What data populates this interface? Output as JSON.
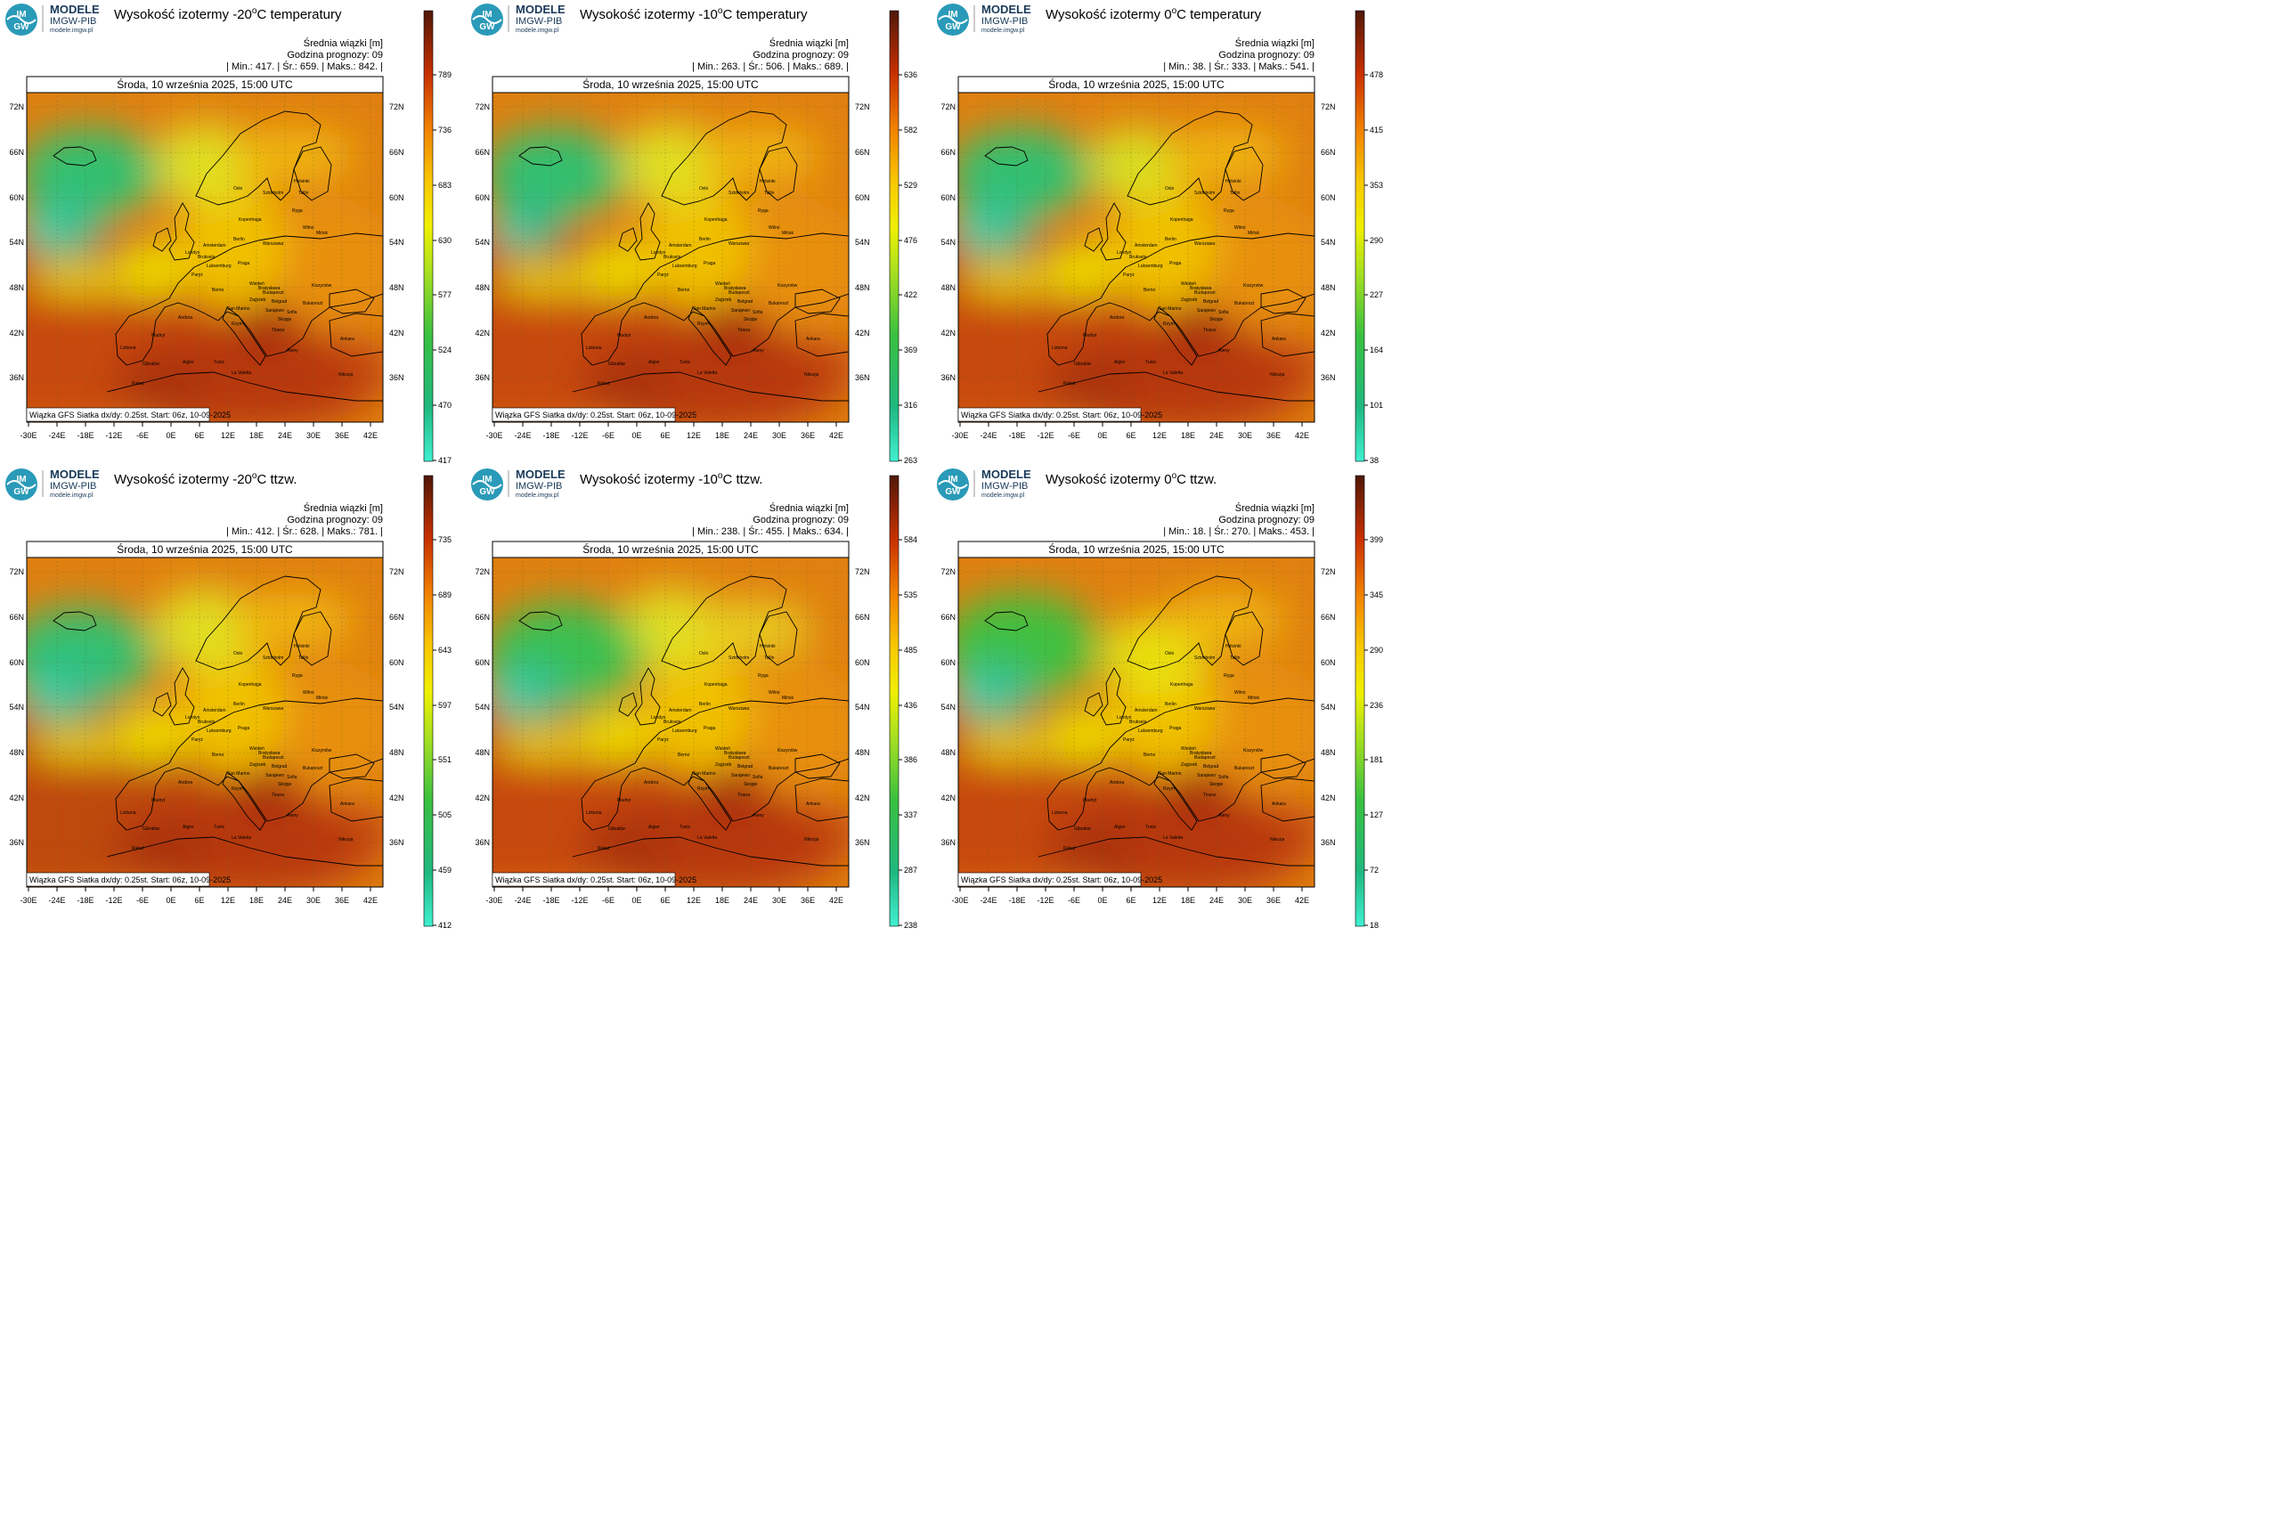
{
  "logo": {
    "brand": "MODELE",
    "org": "IMGW-PIB",
    "site": "modele.imgw.pl",
    "badge_top": "IM",
    "badge_bottom": "GW"
  },
  "common": {
    "date_line": "Środa, 10 września 2025, 15:00 UTC",
    "mean_label": "Średnia wiązki [m]",
    "forecast_hour": "Godzina prognozy: 09",
    "footer": "Wiązka GFS Siatka dx/dy: 0.25st. Start: 06z, 10-09-2025",
    "lon_ticks": [
      "-30E",
      "-24E",
      "-18E",
      "-12E",
      "-6E",
      "0E",
      "6E",
      "12E",
      "18E",
      "24E",
      "30E",
      "36E",
      "42E"
    ],
    "lat_ticks": [
      "72N",
      "66N",
      "60N",
      "54N",
      "48N",
      "42N",
      "36N"
    ]
  },
  "panels": [
    {
      "title_pre": "Wysokość izotermy -20",
      "title_sup": "o",
      "title_post": "C temperatury",
      "stats": "| Min.:    417. | Śr.:    659. | Maks.:    842. |",
      "colorbar_ticks": [
        "789",
        "736",
        "683",
        "630",
        "577",
        "524",
        "470",
        "417"
      ]
    },
    {
      "title_pre": "Wysokość izotermy -10",
      "title_sup": "o",
      "title_post": "C temperatury",
      "stats": "| Min.:    263. | Śr.:    506. | Maks.:    689. |",
      "colorbar_ticks": [
        "636",
        "582",
        "529",
        "476",
        "422",
        "369",
        "316",
        "263"
      ]
    },
    {
      "title_pre": "Wysokość izotermy 0",
      "title_sup": "o",
      "title_post": "C temperatury",
      "stats": "| Min.:     38. | Śr.:    333. | Maks.:    541. |",
      "colorbar_ticks": [
        "478",
        "415",
        "353",
        "290",
        "227",
        "164",
        "101",
        "38"
      ]
    },
    {
      "title_pre": "Wysokość izotermy -20",
      "title_sup": "o",
      "title_post": "C ttzw.",
      "stats": "| Min.:    412. | Śr.:    628. | Maks.:    781. |",
      "colorbar_ticks": [
        "735",
        "689",
        "643",
        "597",
        "551",
        "505",
        "459",
        "412"
      ]
    },
    {
      "title_pre": "Wysokość izotermy -10",
      "title_sup": "o",
      "title_post": "C ttzw.",
      "stats": "| Min.:    238. | Śr.:    455. | Maks.:    634. |",
      "colorbar_ticks": [
        "584",
        "535",
        "485",
        "436",
        "386",
        "337",
        "287",
        "238"
      ]
    },
    {
      "title_pre": "Wysokość izotermy 0",
      "title_sup": "o",
      "title_post": "C ttzw.",
      "stats": "| Min.:     18. | Śr.:    270. | Maks.:    453. |",
      "colorbar_ticks": [
        "399",
        "345",
        "290",
        "236",
        "181",
        "127",
        "72",
        "18"
      ]
    }
  ],
  "cities": [
    "Oslo",
    "Sztokholm",
    "Helsinki",
    "Tallin",
    "Ryga",
    "Wilno",
    "Mińsk",
    "Kopenhaga",
    "Amsterdam",
    "Londyn",
    "Bruksela",
    "Luksemburg",
    "Berlin",
    "Warszawa",
    "Praga",
    "Paryż",
    "Wiedeń",
    "Bratysława",
    "Budapeszt",
    "Kiszyniów",
    "Berno",
    "Zagrzeb",
    "Belgrad",
    "Bukareszt",
    "Sarajewo",
    "San Marino",
    "Sofia",
    "Skopje",
    "Rzym",
    "Andora",
    "Madryt",
    "Lizbona",
    "Tirana",
    "Ateny",
    "Ankara",
    "Gibraltar",
    "Algier",
    "Tunis",
    "La Valetta",
    "Nikozja",
    "Rabat"
  ]
}
